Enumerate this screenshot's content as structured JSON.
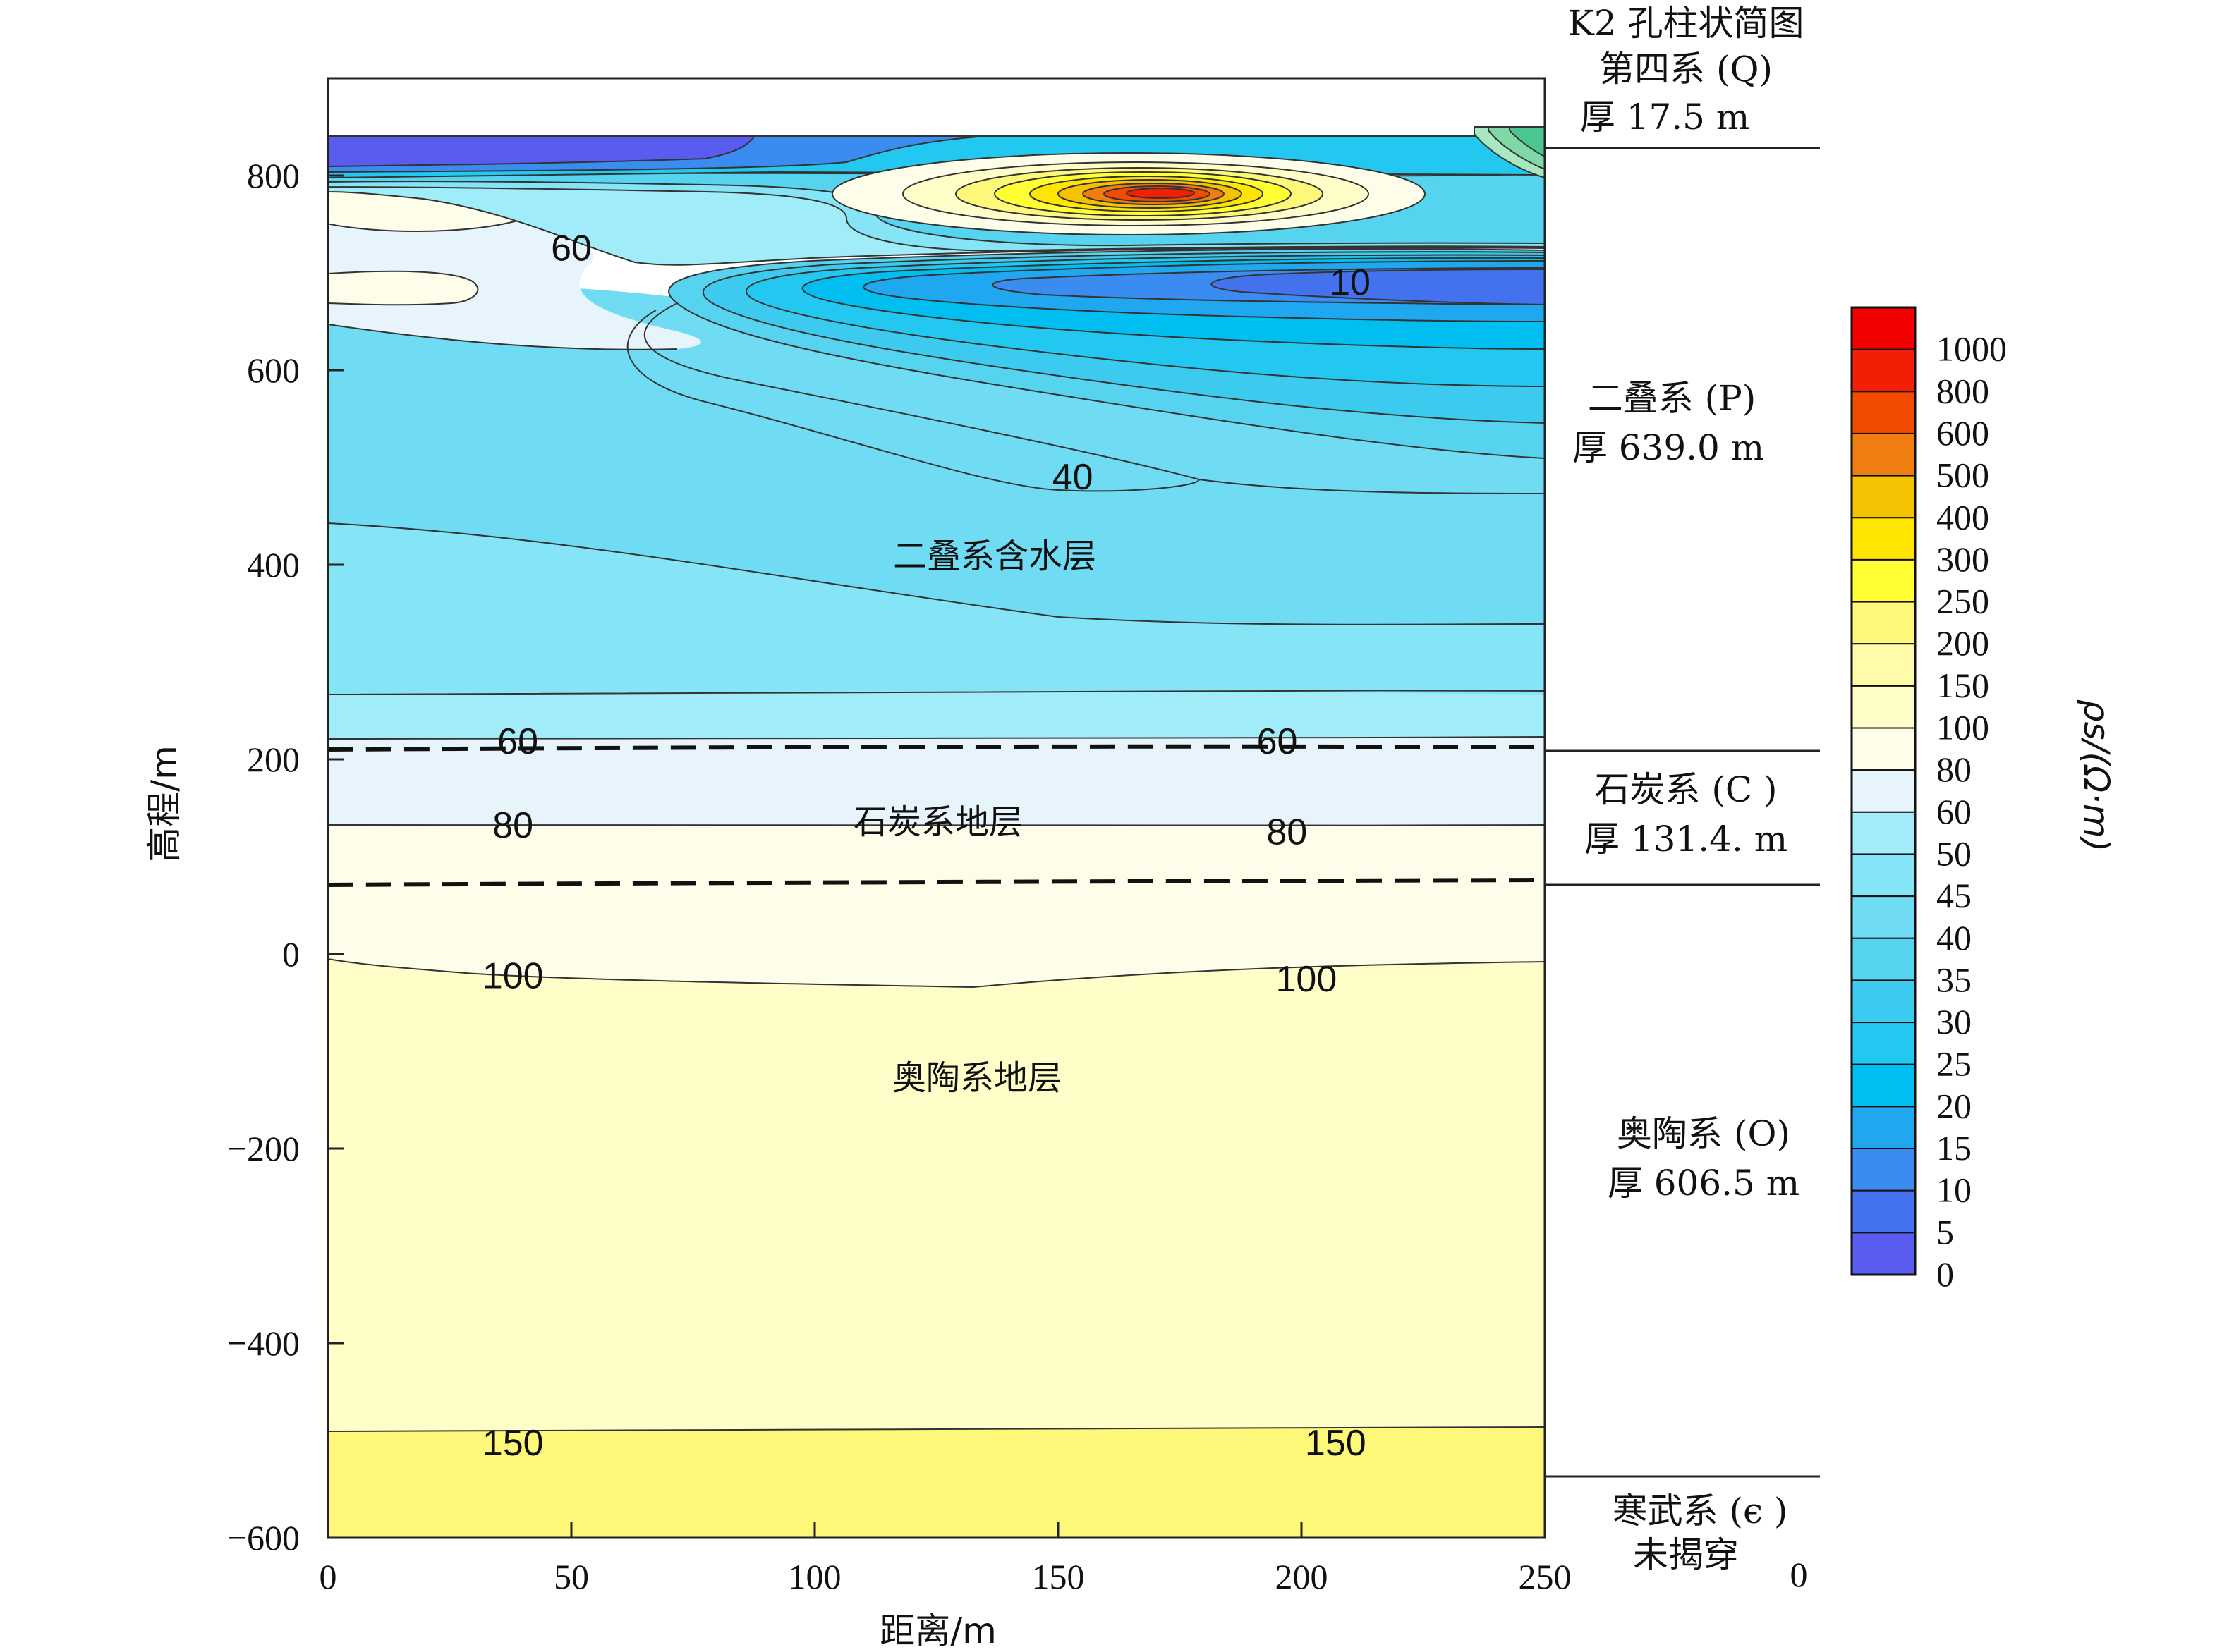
{
  "chart_data": {
    "type": "heatmap",
    "subtype": "filled-contour cross-section",
    "xlabel": "距离/m",
    "ylabel": "高程/m",
    "xlim": [
      0,
      250
    ],
    "ylim": [
      -600,
      900
    ],
    "x_ticks": [
      "0",
      "50",
      "100",
      "150",
      "200",
      "250"
    ],
    "y_ticks": [
      "−600",
      "−400",
      "−200",
      "0",
      "200",
      "400",
      "600",
      "800"
    ],
    "colorbar": {
      "label": "ρs/(Ω·m)",
      "levels": [
        "0",
        "5",
        "10",
        "15",
        "20",
        "25",
        "30",
        "35",
        "40",
        "45",
        "50",
        "60",
        "80",
        "100",
        "150",
        "200",
        "250",
        "300",
        "400",
        "500",
        "600",
        "800",
        "1000"
      ],
      "colors": [
        "#5a5cf0",
        "#4472ee",
        "#3a8cf0",
        "#1fa8f0",
        "#00bff0",
        "#22c8f0",
        "#3ccbee",
        "#55d3ef",
        "#70dcf3",
        "#85e4f6",
        "#a0ecf9",
        "#e8f4fb",
        "#fdfde9",
        "#fffdc8",
        "#fffba8",
        "#fdf87a",
        "#ffff33",
        "#ffe500",
        "#f4c200",
        "#f07d10",
        "#f24a00",
        "#f21f06",
        "#f40000"
      ]
    },
    "contour_bands": [
      {
        "range": "100-150",
        "elevation_span": [
          -500,
          -12
        ]
      },
      {
        "range": "80-100",
        "elevation_span": [
          -12,
          135
        ]
      },
      {
        "range": "60-80",
        "elevation_span": [
          135,
          215
        ]
      },
      {
        "range": "50-60",
        "elevation_span": [
          215,
          270
        ]
      },
      {
        "range": "45-50",
        "elevation_span": [
          270,
          445
        ]
      },
      {
        "range": "40-45",
        "elevation_span": [
          445,
          690
        ]
      },
      {
        "range": "150-200",
        "elevation_span": [
          -600,
          -500
        ]
      },
      {
        "range": "0-5",
        "elevation_span": [
          805,
          845
        ],
        "x_span": [
          0,
          88
        ]
      }
    ],
    "contour_labels": [
      {
        "text": "60",
        "x": 50,
        "y": 725
      },
      {
        "text": "10",
        "x": 210,
        "y": 690
      },
      {
        "text": "40",
        "x": 153,
        "y": 490
      },
      {
        "text": "60",
        "x": 39,
        "y": 218
      },
      {
        "text": "60",
        "x": 195,
        "y": 218
      },
      {
        "text": "80",
        "x": 38,
        "y": 132
      },
      {
        "text": "80",
        "x": 197,
        "y": 125
      },
      {
        "text": "100",
        "x": 38,
        "y": -23
      },
      {
        "text": "100",
        "x": 201,
        "y": -26
      },
      {
        "text": "150",
        "x": 38,
        "y": -503
      },
      {
        "text": "150",
        "x": 207,
        "y": -503
      }
    ],
    "anomalies": [
      {
        "type": "high",
        "peak_value_range": "800-1000",
        "center": [
          170,
          788
        ]
      },
      {
        "type": "high",
        "peak_value_range": "80-100",
        "center": [
          20,
          782
        ]
      },
      {
        "type": "low",
        "peak_value_range": "5-10",
        "center": [
          210,
          695
        ]
      }
    ],
    "boundaries": [
      {
        "style": "dashed",
        "elevation": 208
      },
      {
        "style": "dashed",
        "elevation": 72
      }
    ],
    "region_labels": [
      "二叠系含水层",
      "石炭系地层",
      "奥陶系地层"
    ],
    "borehole": {
      "title": "K2 孔柱状简图",
      "units": [
        {
          "name": "第四系 (Q)",
          "thickness": "厚 17.5 m",
          "base_elevation": 840
        },
        {
          "name": "二叠系 (P)",
          "thickness": "厚 639.0 m",
          "base_elevation": 208
        },
        {
          "name": "石炭系 (C )",
          "thickness": "厚 131.4. m",
          "base_elevation": 72
        },
        {
          "name": "奥陶系 (O)",
          "thickness": "厚 606.5 m",
          "base_elevation": -542
        },
        {
          "name": "寒武系 (є )",
          "thickness": "未揭穿",
          "base_elevation": null
        }
      ],
      "bottom_label": "0"
    }
  }
}
